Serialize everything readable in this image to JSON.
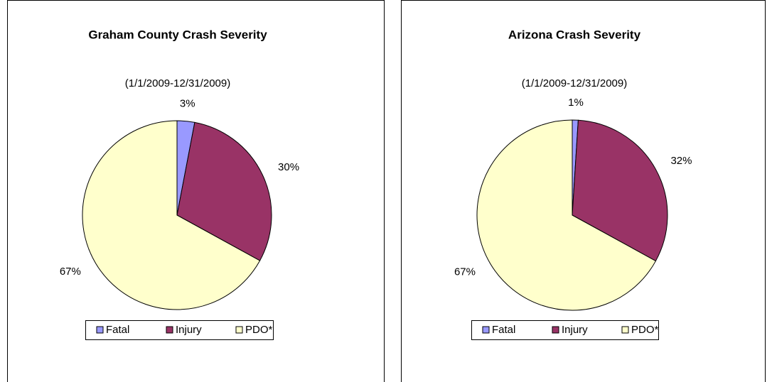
{
  "chart_data": [
    {
      "type": "pie",
      "title": "Graham County Crash Severity",
      "subtitle": "(1/1/2009-12/31/2009)",
      "categories": [
        "Fatal",
        "Injury",
        "PDO*"
      ],
      "values": [
        3,
        30,
        67
      ],
      "value_labels": [
        "3%",
        "30%",
        "67%"
      ],
      "colors": [
        "#9999ff",
        "#993366",
        "#ffffcc"
      ],
      "legend": "bottom"
    },
    {
      "type": "pie",
      "title": "Arizona Crash Severity",
      "subtitle": "(1/1/2009-12/31/2009)",
      "categories": [
        "Fatal",
        "Injury",
        "PDO*"
      ],
      "values": [
        1,
        32,
        67
      ],
      "value_labels": [
        "1%",
        "32%",
        "67%"
      ],
      "colors": [
        "#9999ff",
        "#993366",
        "#ffffcc"
      ],
      "legend": "bottom"
    }
  ]
}
